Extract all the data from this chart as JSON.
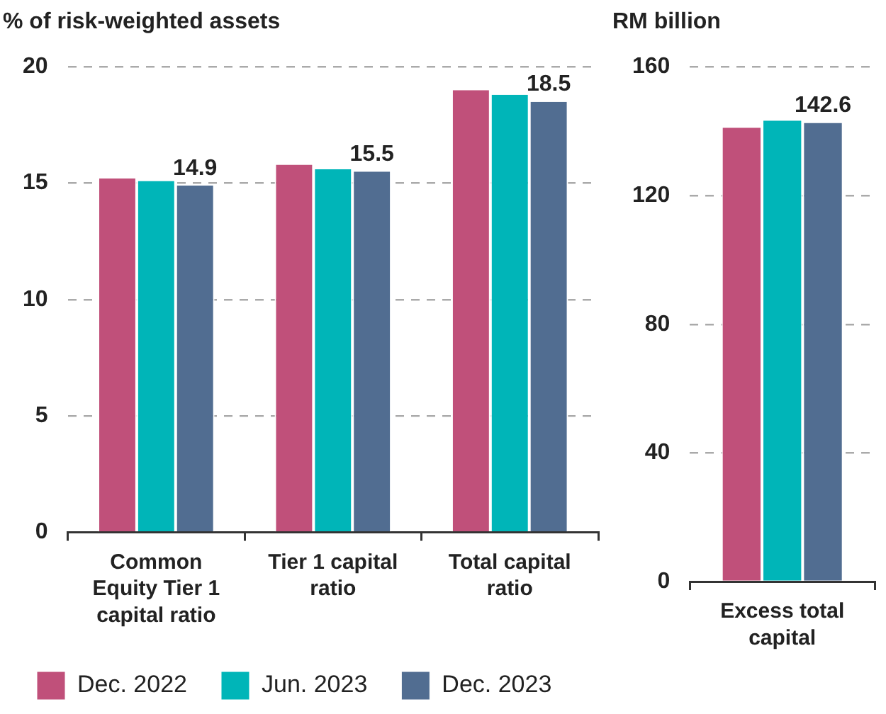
{
  "chart_data": [
    {
      "type": "bar",
      "title": "% of risk-weighted assets",
      "categories": [
        "Common Equity Tier 1 capital ratio",
        "Tier 1 capital ratio",
        "Total capital ratio"
      ],
      "series": [
        {
          "name": "Dec. 2022",
          "color": "#c0507a",
          "values": [
            15.2,
            15.8,
            19.0
          ]
        },
        {
          "name": "Jun. 2023",
          "color": "#00b5b8",
          "values": [
            15.1,
            15.6,
            18.8
          ]
        },
        {
          "name": "Dec. 2023",
          "color": "#516d91",
          "values": [
            14.9,
            15.5,
            18.5
          ],
          "value_labels": [
            "14.9",
            "15.5",
            "18.5"
          ]
        }
      ],
      "ylim": [
        0,
        20
      ],
      "yticks": [
        0,
        5,
        10,
        15,
        20
      ],
      "grid": "y",
      "legend": "bottom"
    },
    {
      "type": "bar",
      "title": "RM billion",
      "categories": [
        "Excess total capital"
      ],
      "series": [
        {
          "color": "#c0507a",
          "values": [
            141.1
          ]
        },
        {
          "color": "#00b5b8",
          "values": [
            143.3
          ]
        },
        {
          "color": "#516d91",
          "values": [
            142.6
          ],
          "value_labels": [
            "142.6"
          ]
        }
      ],
      "ylim": [
        0,
        160
      ],
      "yticks": [
        0,
        40,
        80,
        120,
        160
      ],
      "grid": "y"
    }
  ]
}
